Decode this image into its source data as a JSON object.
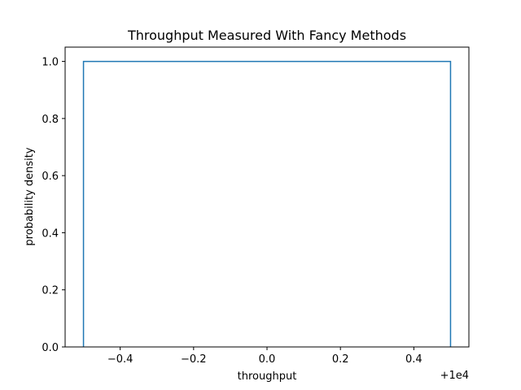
{
  "chart_data": {
    "type": "line",
    "title": "Throughput Measured With Fancy Methods",
    "xlabel": "throughput",
    "ylabel": "probability density",
    "x_offset_label": "+1e4",
    "xlim": [
      -0.55,
      0.55
    ],
    "ylim": [
      0,
      1.05
    ],
    "xticks": [
      -0.4,
      -0.2,
      0.0,
      0.2,
      0.4
    ],
    "xtick_labels": [
      "−0.4",
      "−0.2",
      "0.0",
      "0.2",
      "0.4"
    ],
    "yticks": [
      0.0,
      0.2,
      0.4,
      0.6,
      0.8,
      1.0
    ],
    "ytick_labels": [
      "0.0",
      "0.2",
      "0.4",
      "0.6",
      "0.8",
      "1.0"
    ],
    "grid": false,
    "series": [
      {
        "color": "#1f77b4",
        "x": [
          -0.5,
          -0.5,
          0.5,
          0.5
        ],
        "y": [
          0.0,
          1.0,
          1.0,
          0.0
        ]
      }
    ]
  }
}
